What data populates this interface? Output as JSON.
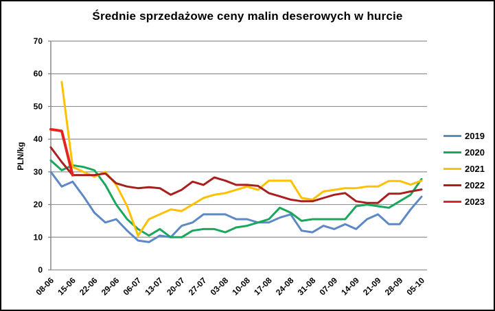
{
  "chart_data": {
    "type": "line",
    "title": "Średnie sprzedażowe ceny malin deserowych w hurcie",
    "xlabel": "",
    "ylabel": "PLN/kg",
    "ylim": [
      0,
      70
    ],
    "ytick_step": 10,
    "grid": true,
    "legend_position": "right",
    "x_tick_labels": [
      "08-06",
      "15-06",
      "22-06",
      "29-06",
      "06-07",
      "13-07",
      "20-07",
      "27-07",
      "03-08",
      "10-08",
      "17-08",
      "24-08",
      "31-08",
      "07-09",
      "14-09",
      "21-09",
      "28-09",
      "05-10"
    ],
    "points_per_week": 2,
    "axis_color": "#808080",
    "grid_color": "#909090",
    "series": [
      {
        "name": "2019",
        "color": "#5C88C5",
        "values": [
          30,
          25.5,
          27,
          22.5,
          17.5,
          14.5,
          15.5,
          12,
          9,
          8.5,
          10.5,
          10,
          13.5,
          14.5,
          17,
          17,
          17,
          15.5,
          15.5,
          14.5,
          14.5,
          16,
          17,
          12,
          11.5,
          13.5,
          12.5,
          14,
          12.5,
          15.5,
          17,
          14,
          14,
          18.5,
          22.4
        ]
      },
      {
        "name": "2020",
        "color": "#18A75C",
        "values": [
          33.5,
          30.5,
          32,
          31.5,
          30.5,
          26,
          20,
          15.5,
          12.5,
          10.5,
          12.5,
          10,
          10,
          12,
          12.5,
          12.5,
          11.5,
          13,
          13.5,
          14.5,
          15.5,
          19,
          17.5,
          15,
          15.5,
          15.5,
          15.5,
          15.5,
          19.5,
          20,
          19.5,
          19,
          21,
          23,
          27.8
        ]
      },
      {
        "name": "2021",
        "color": "#FFC000",
        "values": [
          null,
          57.5,
          31.5,
          30,
          28.5,
          30,
          26,
          19.5,
          10.5,
          15.5,
          17,
          18.5,
          18,
          20,
          22,
          23,
          23.5,
          24.5,
          25.5,
          24.5,
          27.3,
          27.3,
          27.3,
          22,
          21.5,
          24,
          24.5,
          25,
          25,
          25.5,
          25.5,
          27.2,
          27.2,
          26.1,
          27.3
        ]
      },
      {
        "name": "2022",
        "color": "#A91F1D",
        "values": [
          37.5,
          33,
          29,
          29,
          29,
          29.5,
          26.5,
          25.5,
          25,
          25.3,
          25,
          23,
          24.5,
          27,
          26,
          28.3,
          27.3,
          26,
          26,
          25.7,
          23.5,
          22.5,
          21.5,
          21,
          21,
          22,
          23,
          23.5,
          21,
          20.5,
          20.5,
          23.3,
          23.3,
          24,
          24.6
        ]
      },
      {
        "name": "2023",
        "color": "#E3261D",
        "values": [
          43,
          42.5,
          29,
          null,
          null,
          null,
          null,
          null,
          null,
          null,
          null,
          null,
          null,
          null,
          null,
          null,
          null,
          null,
          null,
          null,
          null,
          null,
          null,
          null,
          null,
          null,
          null,
          null,
          null,
          null,
          null,
          null,
          null,
          null,
          null
        ]
      }
    ]
  }
}
